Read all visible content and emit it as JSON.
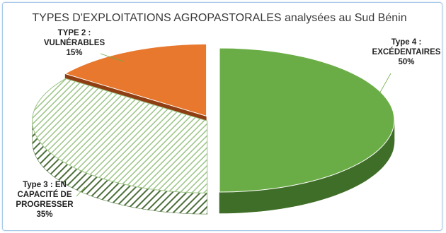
{
  "chart_data": {
    "type": "pie",
    "title": "TYPES D'EXPLOITATIONS AGROPASTORALES analysées au Sud Bénin",
    "slices": [
      {
        "label_lines": [
          "Type 4 :",
          "EXCÉDENTAIRES",
          "50%"
        ],
        "value": 50,
        "color": "#6aad46",
        "side_color": "#3f6e28",
        "pattern": "solid"
      },
      {
        "label_lines": [
          "Type 3 : EN",
          "CAPACITÉ DE",
          "PROGRESSER",
          "35%"
        ],
        "value": 35,
        "color": "#9cc486",
        "side_color": "#5b7f48",
        "pattern": "hatched"
      },
      {
        "label_lines": [
          "TYPE 2 :",
          "VULNÉRABLES",
          "15%"
        ],
        "value": 15,
        "color": "#e8782e",
        "side_color": "#8e3e12",
        "pattern": "solid"
      }
    ],
    "legend": "none"
  }
}
